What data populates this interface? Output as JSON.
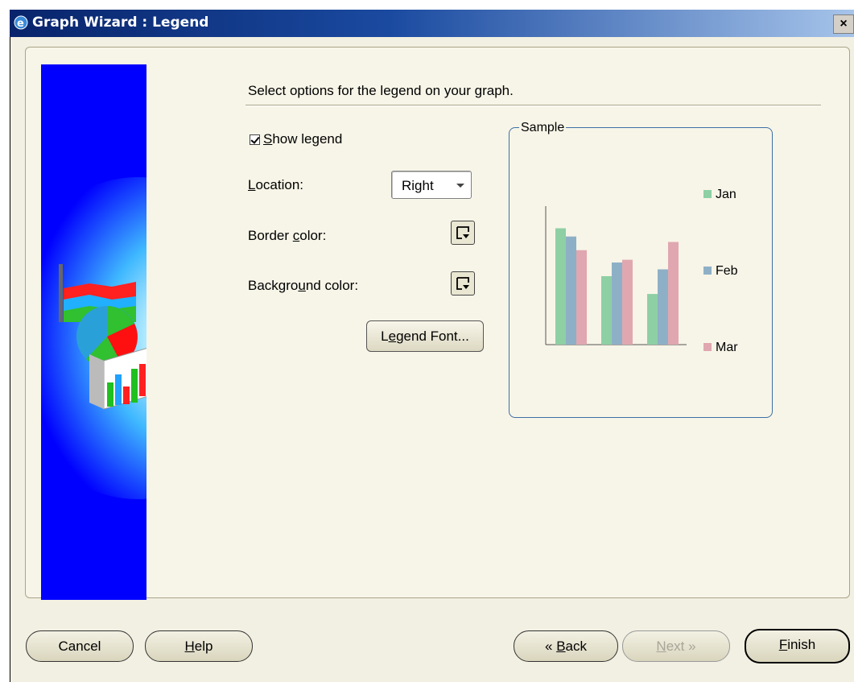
{
  "window": {
    "title": "Graph Wizard : Legend",
    "close_label": "×"
  },
  "instruction": "Select options for the legend on your graph.",
  "show_legend": {
    "label": "Show legend",
    "checked": true
  },
  "location": {
    "label": "Location:",
    "value": "Right"
  },
  "border_color": {
    "label": "Border color:"
  },
  "background_color": {
    "label": "Background color:"
  },
  "legend_font_button": "Legend Font...",
  "sample": {
    "title": "Sample",
    "chart_data": {
      "type": "bar",
      "categories": [
        "",
        "",
        ""
      ],
      "series": [
        {
          "name": "Jan",
          "values": [
            8.5,
            5.0,
            3.7
          ]
        },
        {
          "name": "Feb",
          "values": [
            7.9,
            6.0,
            5.5
          ]
        },
        {
          "name": "Mar",
          "values": [
            6.9,
            6.2,
            7.5
          ]
        }
      ],
      "colors": [
        "#8ecfa4",
        "#8eb0c6",
        "#e0a7b0"
      ],
      "legend": "right",
      "ylim": [
        0,
        10
      ],
      "grid": false
    }
  },
  "buttons": {
    "cancel": "Cancel",
    "help": "Help",
    "back": "Back",
    "next": "Next",
    "finish": "Finish"
  }
}
